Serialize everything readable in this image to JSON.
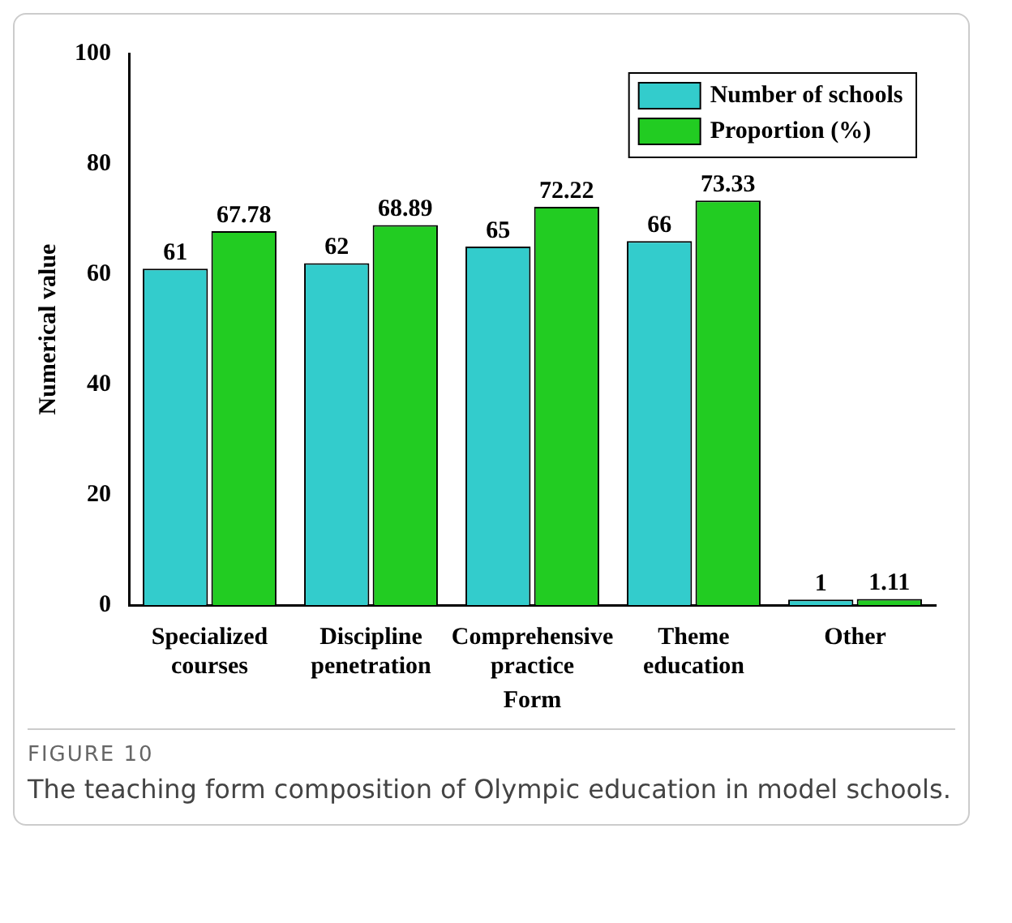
{
  "chart_data": {
    "type": "bar",
    "xlabel": "Form",
    "ylabel": "Numerical value",
    "categories": [
      "Specialized courses",
      "Discipline penetration",
      "Comprehensive practice",
      "Theme education",
      "Other"
    ],
    "series": [
      {
        "name": "Number of schools",
        "color": "#33cccc",
        "values": [
          61,
          62,
          65,
          66,
          1
        ]
      },
      {
        "name": "Proportion (%)",
        "color": "#22cc22",
        "values": [
          67.78,
          68.89,
          72.22,
          73.33,
          1.11
        ]
      }
    ],
    "ylim": [
      0,
      100
    ],
    "yticks": [
      0,
      20,
      40,
      60,
      80,
      100
    ],
    "grid": false,
    "legend": "top right",
    "data_labels": true,
    "annotations": [
      "FIGURE 10",
      "The teaching form composition of Olympic education in model schools."
    ]
  }
}
